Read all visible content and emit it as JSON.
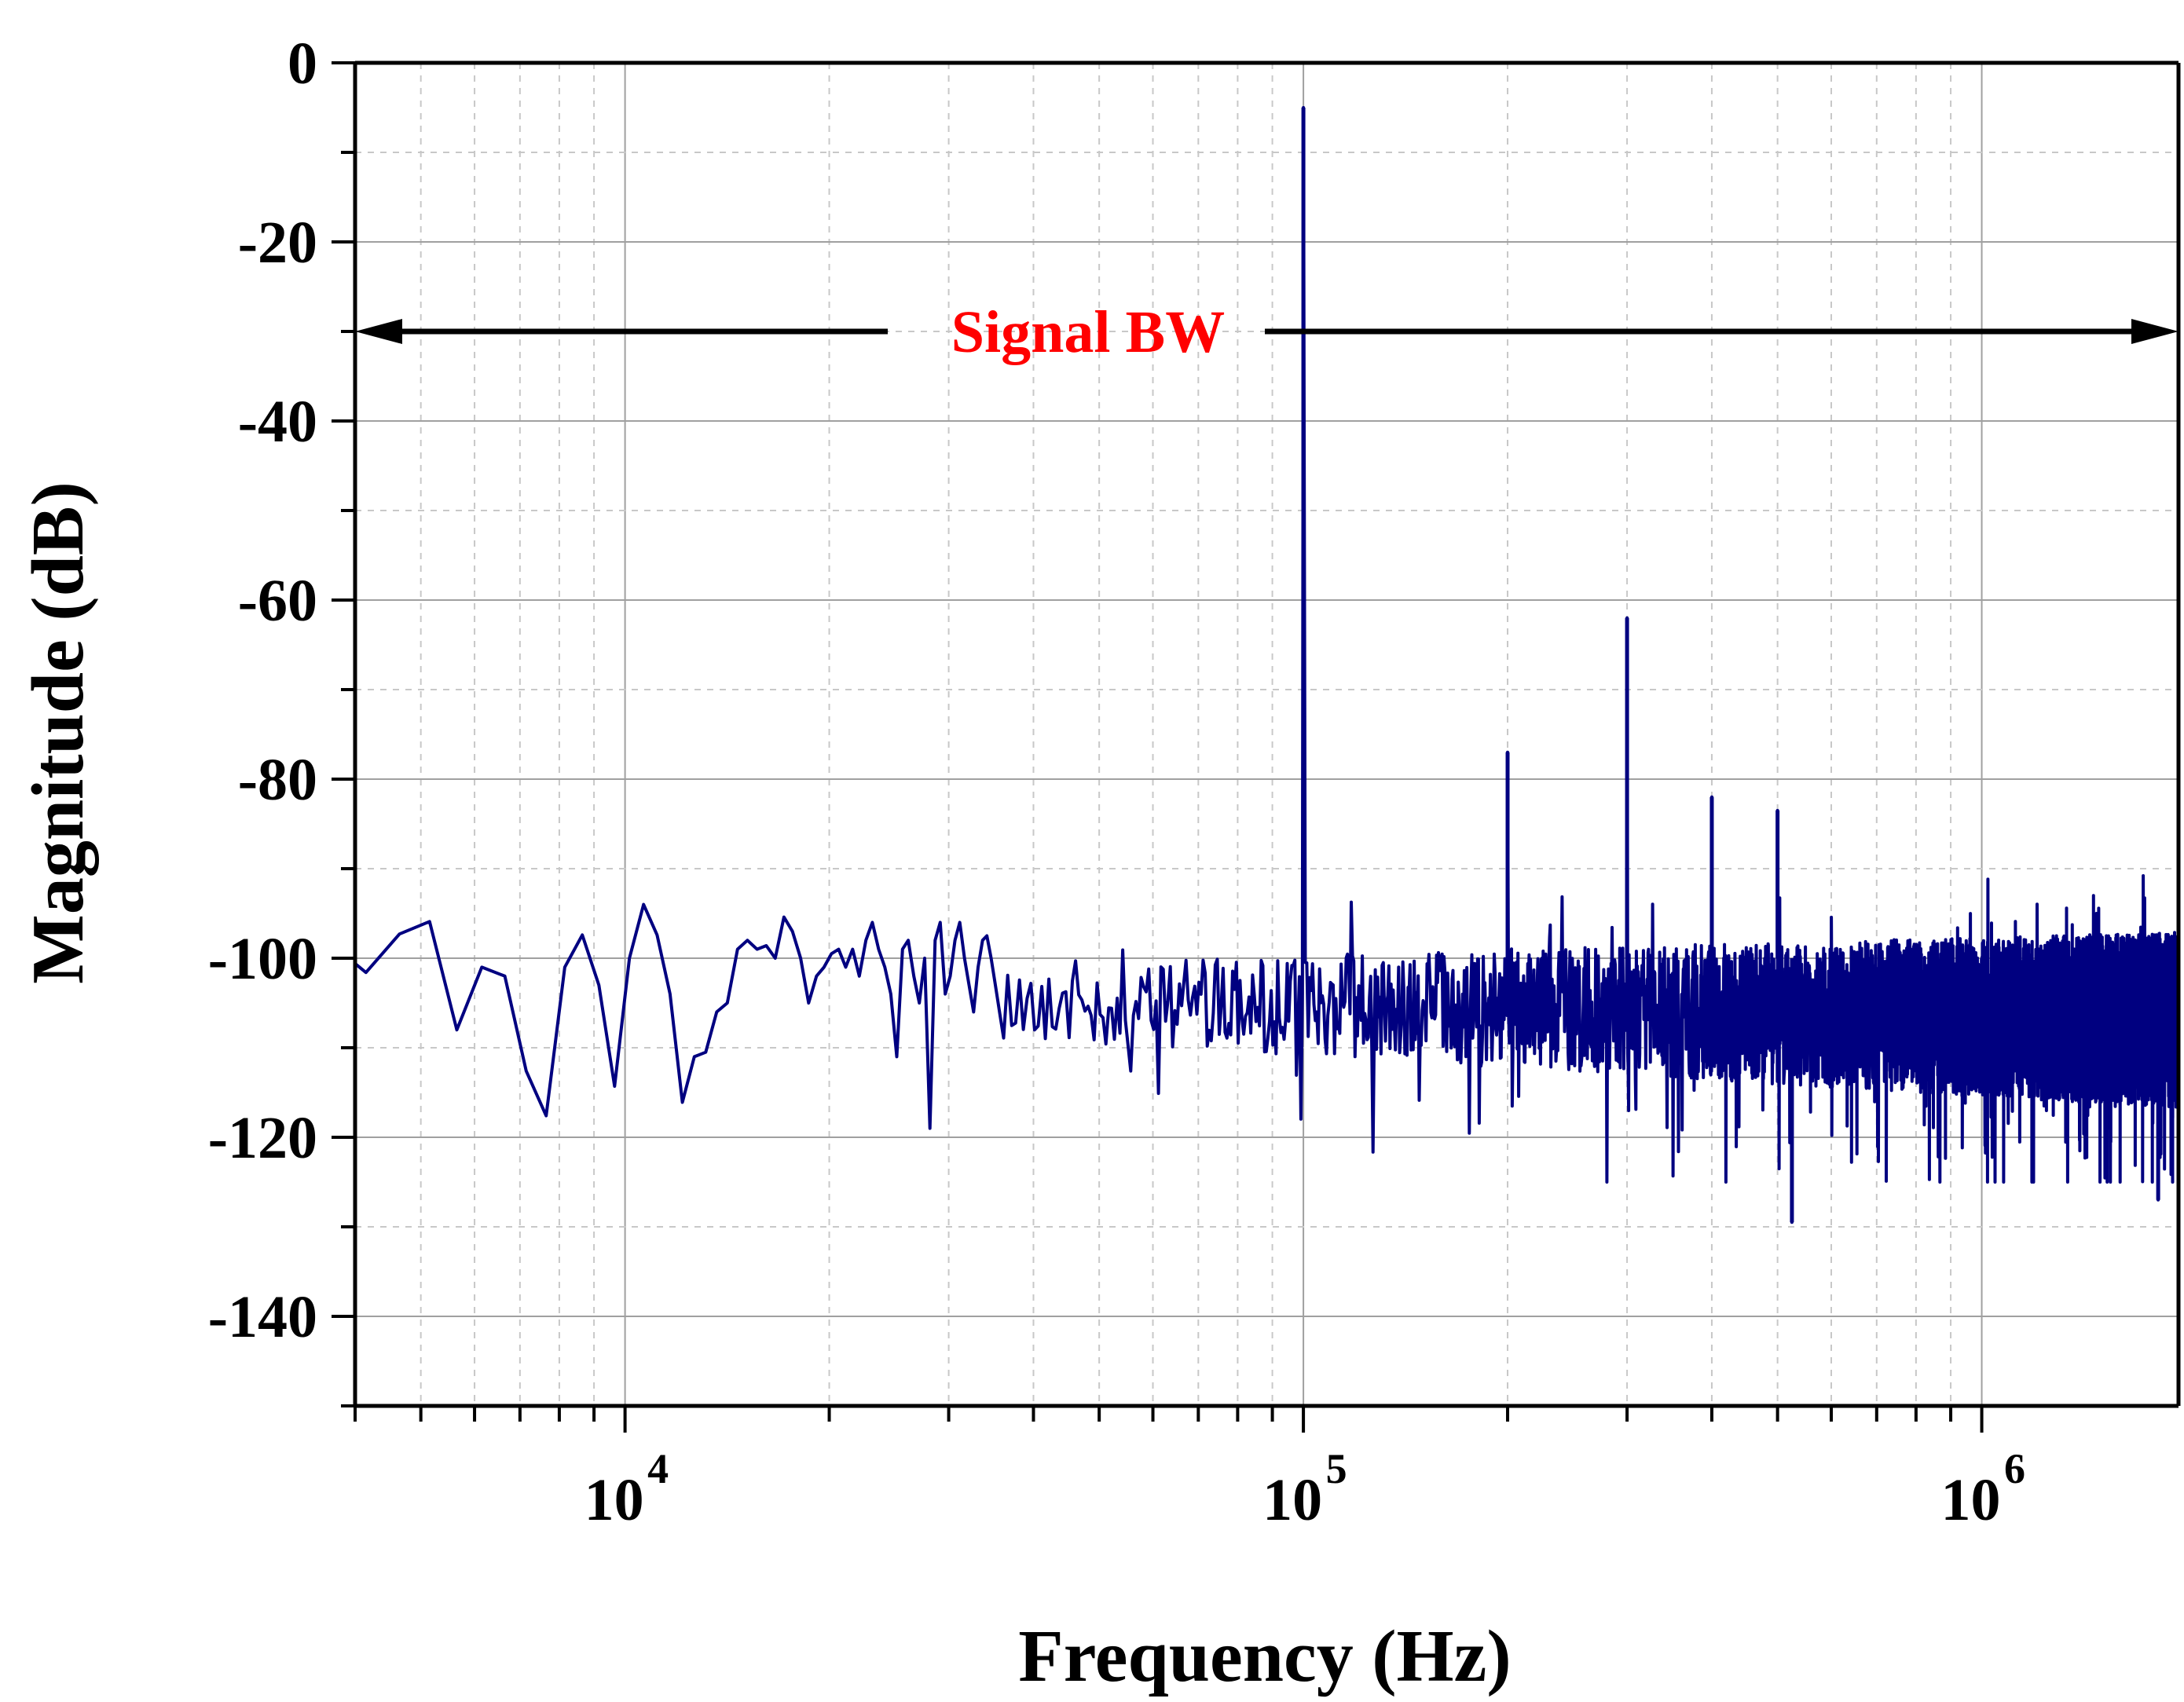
{
  "chart_data": {
    "type": "line",
    "title": "",
    "xlabel": "Frequency (Hz)",
    "ylabel": "Magnitude (dB)",
    "x_scale": "log",
    "xlim": [
      4000,
      1950000
    ],
    "ylim": [
      -150,
      0
    ],
    "x_ticks": [
      {
        "value": 10000,
        "base": "10",
        "exp": "4"
      },
      {
        "value": 100000,
        "base": "10",
        "exp": "5"
      },
      {
        "value": 1000000,
        "base": "10",
        "exp": "6"
      }
    ],
    "y_ticks": [
      {
        "value": 0,
        "label": "0"
      },
      {
        "value": -20,
        "label": "-20"
      },
      {
        "value": -40,
        "label": "-40"
      },
      {
        "value": -60,
        "label": "-60"
      },
      {
        "value": -80,
        "label": "-80"
      },
      {
        "value": -100,
        "label": "-100"
      },
      {
        "value": -120,
        "label": "-120"
      },
      {
        "value": -140,
        "label": "-140"
      }
    ],
    "grid": true,
    "line_color": "#000080",
    "annotation": {
      "text": "Signal BW",
      "color": "#ff0000",
      "y": -30,
      "x_start": 4000,
      "x_end": 1950000
    },
    "series": [
      {
        "name": "",
        "noise_floor_db": -100,
        "x": [
          4000,
          4150,
          4650,
          5150,
          5650,
          6150,
          6650,
          7150,
          7650,
          8150,
          8650,
          9150,
          9650,
          10150,
          10650,
          11150,
          11650,
          12150,
          12650,
          13150,
          13650,
          14150,
          14650,
          15150,
          15650,
          16150,
          16650,
          17150,
          17650,
          18150,
          18650,
          19150,
          19650,
          20150,
          20650,
          21150,
          21650,
          22150,
          22650,
          23150,
          23650,
          24150,
          24650,
          25150,
          25650,
          26150,
          26650,
          27150,
          27650,
          28150,
          28650,
          29150,
          29650,
          30150,
          30650,
          31150,
          31650,
          32150,
          32650,
          33150,
          33650,
          34150,
          34650,
          35150
        ],
        "y": [
          -100.6,
          -101.6,
          -97.3,
          -95.9,
          -108.0,
          -101.0,
          -102.0,
          -112.6,
          -117.6,
          -101.0,
          -97.4,
          -103.0,
          -114.3,
          -100.0,
          -94.0,
          -97.4,
          -104.0,
          -116.1,
          -111.0,
          -110.5,
          -106.0,
          -105.0,
          -99.0,
          -98.0,
          -99.0,
          -98.6,
          -100.0,
          -95.4,
          -97.0,
          -100.0,
          -105.0,
          -102.0,
          -101.0,
          -99.5,
          -99.0,
          -101.0,
          -99.0,
          -102.0,
          -98.0,
          -96.0,
          -99.0,
          -101.0,
          -104.0,
          -111.0,
          -99.0,
          -98.0,
          -102.0,
          -105.0,
          -100.0,
          -119.0,
          -98.0,
          -96.0,
          -104.0,
          -102.0,
          -98.0,
          -96.0,
          -100.0,
          -103.0,
          -106.0,
          -101.0,
          -98.0,
          -97.5,
          -100.0,
          -103.0
        ]
      }
    ],
    "spurs": [
      {
        "x": 100000,
        "y": -5
      },
      {
        "x": 200000,
        "y": -77
      },
      {
        "x": 300000,
        "y": -62
      },
      {
        "x": 400000,
        "y": -82
      },
      {
        "x": 500000,
        "y": -83.5
      },
      {
        "x": 525000,
        "y": -129.5
      },
      {
        "x": 1820000,
        "y": -127
      }
    ]
  }
}
